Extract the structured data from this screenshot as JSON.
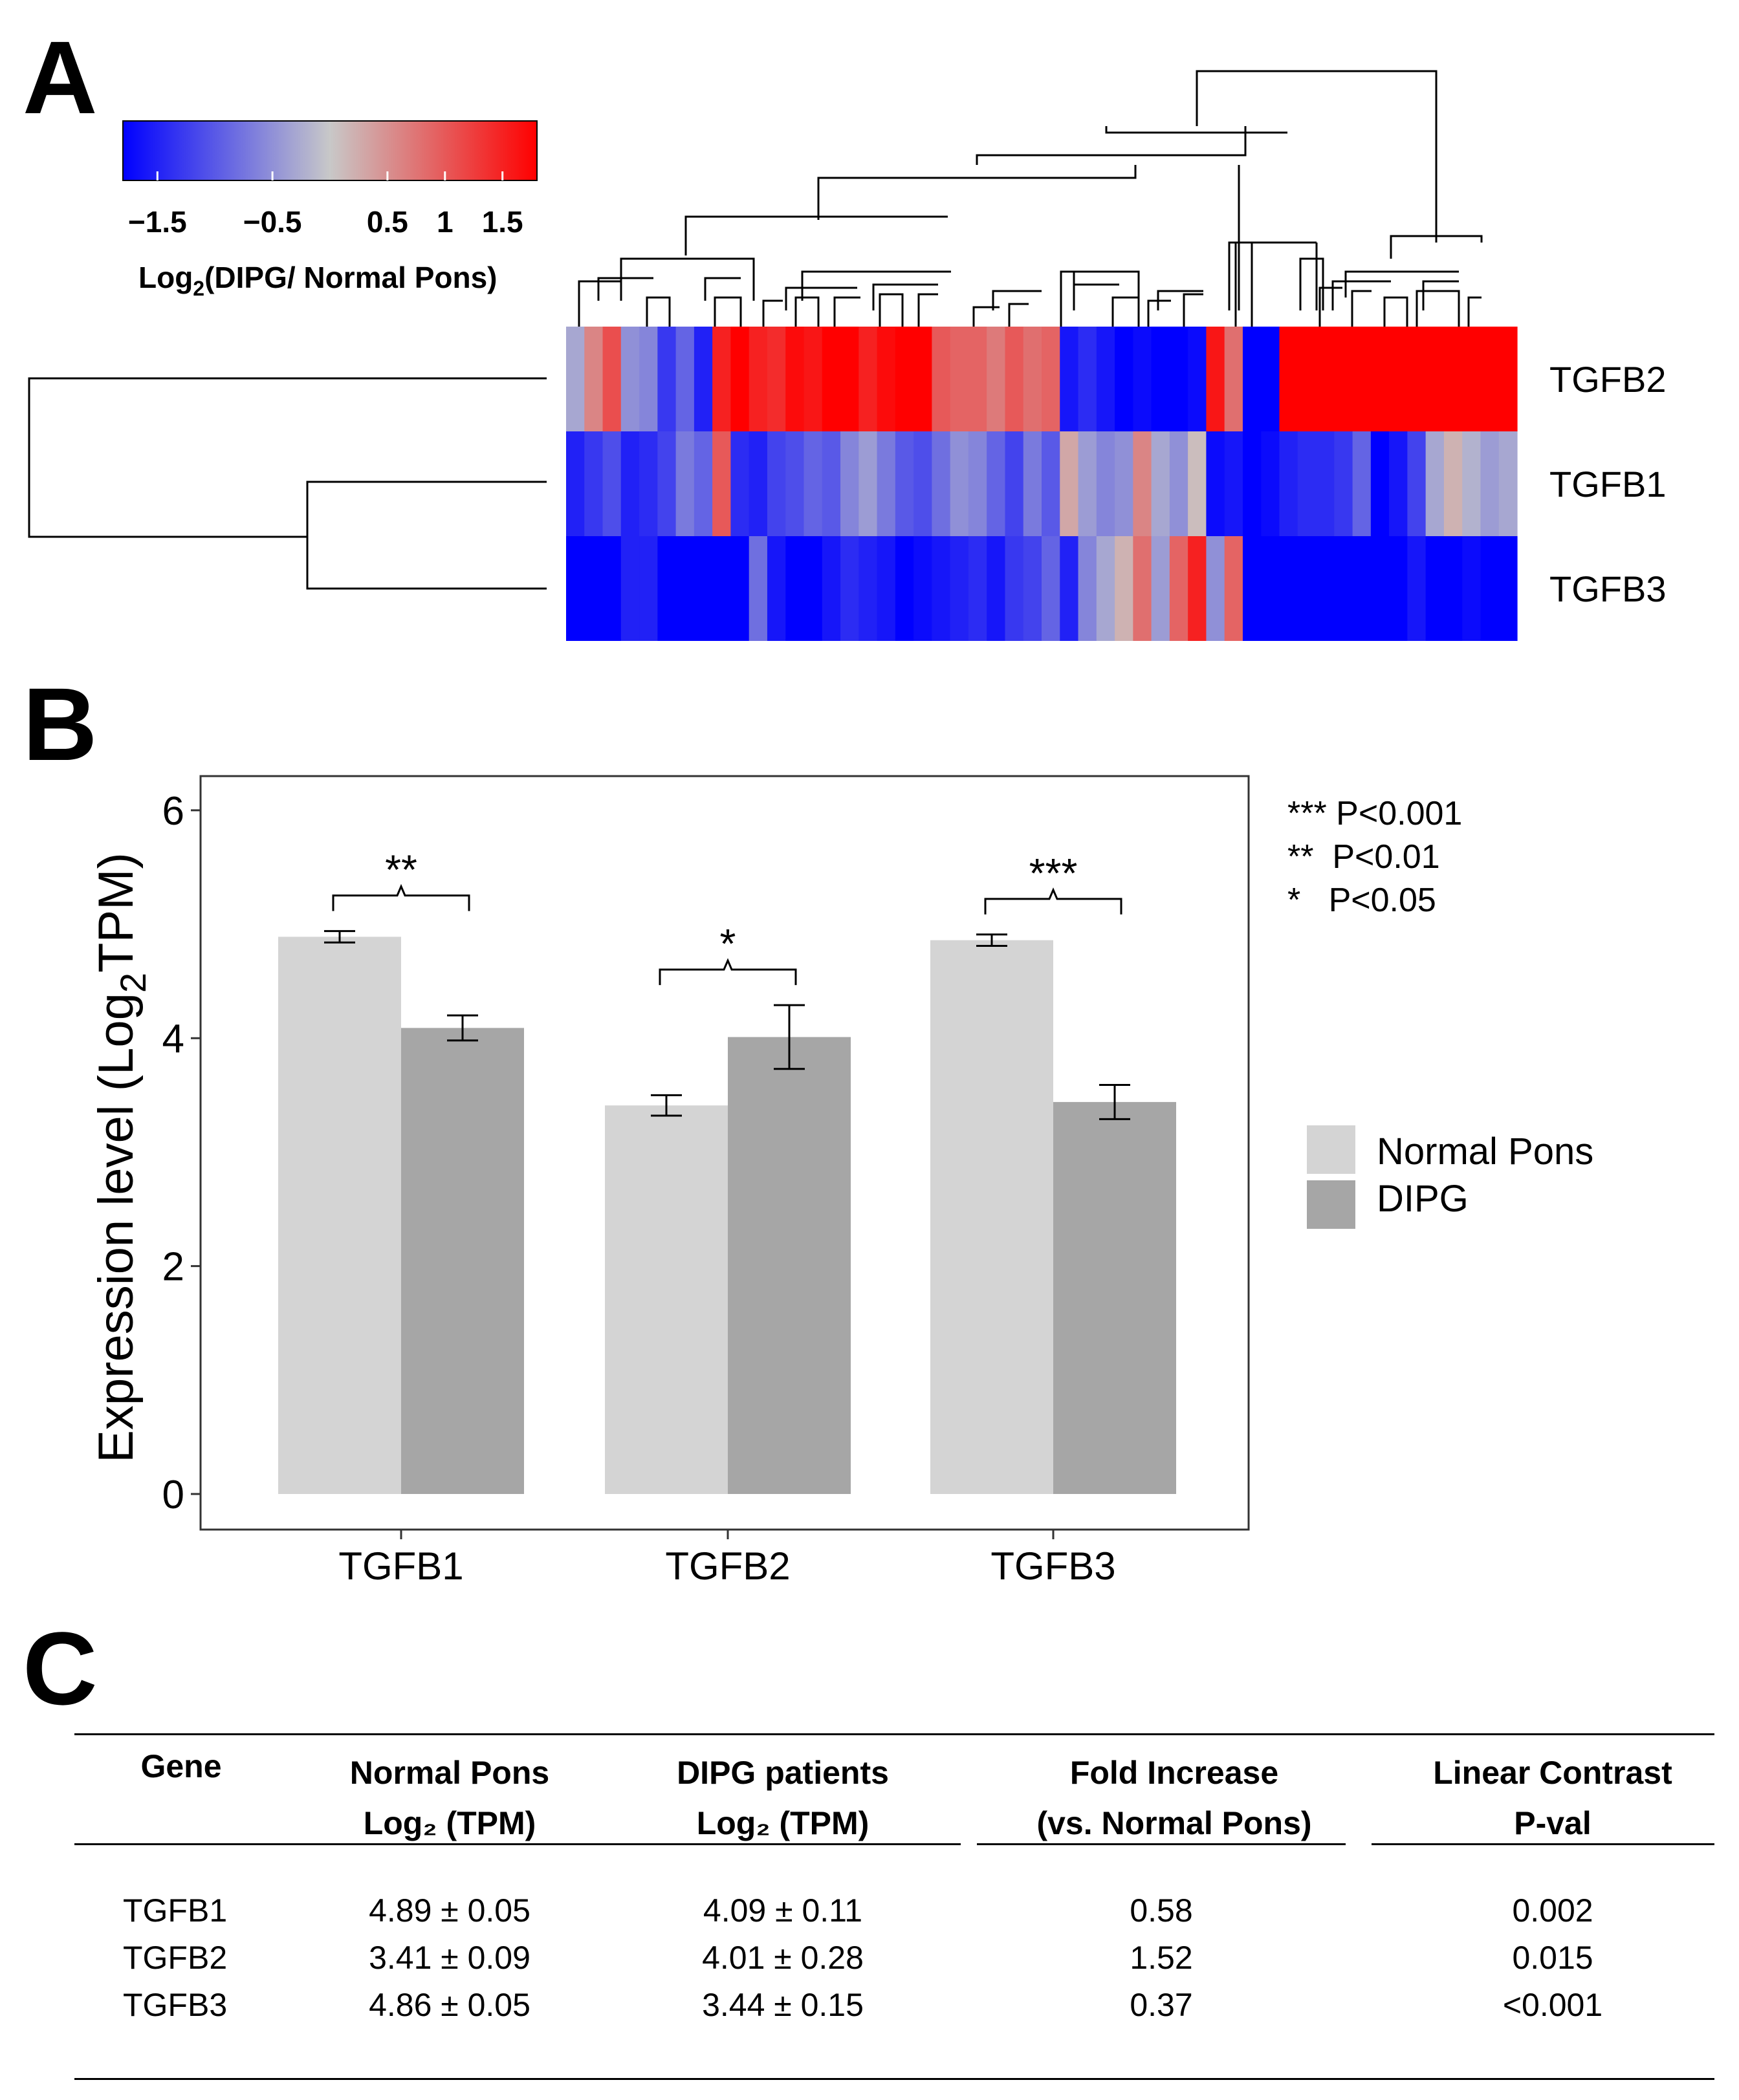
{
  "panels": {
    "a": "A",
    "b": "B",
    "c": "C"
  },
  "heatmap": {
    "colorbar": {
      "ticks": [
        "−1.5",
        "−0.5",
        "0.5",
        "1",
        "1.5"
      ],
      "tick_values": [
        -1.5,
        -0.5,
        0.5,
        1,
        1.5
      ],
      "range": [
        -1.8,
        1.8
      ],
      "label_prefix": "Log",
      "label_sub": "2",
      "label_suffix": "(DIPG/ Normal Pons)",
      "low_color": "#0000ff",
      "mid_color": "#c8c8c8",
      "high_color": "#ff0000"
    },
    "rows": [
      "TGFB2",
      "TGFB1",
      "TGFB3"
    ],
    "values": [
      [
        -0.3,
        0.6,
        1.1,
        -0.5,
        -0.6,
        -1.3,
        -0.9,
        -1.5,
        1.5,
        1.8,
        1.5,
        1.4,
        1.7,
        1.6,
        1.8,
        1.8,
        1.5,
        1.7,
        1.8,
        1.8,
        1.0,
        0.9,
        0.9,
        0.7,
        1.0,
        0.8,
        0.9,
        -1.6,
        -1.4,
        -1.6,
        -1.8,
        -1.7,
        -1.8,
        -1.8,
        -1.7,
        1.6,
        0.8,
        -1.8,
        -1.8,
        1.8,
        1.8,
        1.8,
        1.8,
        1.8,
        1.8,
        1.8,
        1.8,
        1.8,
        1.8,
        1.8,
        1.8,
        1.8
      ],
      [
        -1.5,
        -1.3,
        -1.1,
        -1.5,
        -1.4,
        -1.2,
        -0.7,
        -0.9,
        1.0,
        -1.4,
        -1.5,
        -1.2,
        -1.1,
        -0.9,
        -1.0,
        -0.6,
        -0.4,
        -0.7,
        -1.0,
        -1.1,
        -0.8,
        -0.5,
        -0.6,
        -0.9,
        -1.2,
        -0.7,
        -1.0,
        0.3,
        -0.4,
        -0.6,
        -0.5,
        0.6,
        -0.3,
        -0.5,
        0.1,
        -1.7,
        -1.6,
        -1.8,
        -1.7,
        -1.5,
        -1.4,
        -1.4,
        -1.3,
        -0.9,
        -1.8,
        -1.6,
        -1.2,
        -0.3,
        0.2,
        -0.2,
        -0.4,
        -0.3
      ],
      [
        -1.8,
        -1.8,
        -1.8,
        -1.5,
        -1.5,
        -1.8,
        -1.8,
        -1.8,
        -1.8,
        -1.8,
        -0.8,
        -1.6,
        -1.8,
        -1.8,
        -1.6,
        -1.4,
        -1.5,
        -1.6,
        -1.8,
        -1.7,
        -1.6,
        -1.5,
        -1.4,
        -1.6,
        -1.3,
        -1.2,
        -0.9,
        -1.5,
        -0.6,
        -0.3,
        0.2,
        0.8,
        -0.4,
        0.9,
        1.5,
        -0.5,
        0.9,
        -1.8,
        -1.8,
        -1.8,
        -1.8,
        -1.8,
        -1.8,
        -1.8,
        -1.8,
        -1.8,
        -1.6,
        -1.8,
        -1.8,
        -1.7,
        -1.8,
        -1.8
      ]
    ]
  },
  "chart_data": {
    "type": "bar",
    "categories": [
      "TGFB1",
      "TGFB2",
      "TGFB3"
    ],
    "series": [
      {
        "name": "Normal Pons",
        "values": [
          4.89,
          3.41,
          4.86
        ],
        "errors": [
          0.05,
          0.09,
          0.05
        ],
        "color": "#d4d4d4"
      },
      {
        "name": "DIPG",
        "values": [
          4.09,
          4.01,
          3.44
        ],
        "errors": [
          0.11,
          0.28,
          0.15
        ],
        "color": "#a6a6a6"
      }
    ],
    "ylabel_prefix": "Expression level (Log",
    "ylabel_sub": "2",
    "ylabel_suffix": "TPM)",
    "ylim": [
      0,
      6.3
    ],
    "yticks": [
      0,
      2,
      4,
      6
    ],
    "significance": [
      "**",
      "*",
      "***"
    ],
    "sig_legend": [
      "*** P<0.001",
      "**  P<0.01",
      "*   P<0.05"
    ],
    "legend_position": "right"
  },
  "table": {
    "headers": [
      [
        "Gene",
        ""
      ],
      [
        "Normal Pons",
        "Log₂ (TPM)"
      ],
      [
        "DIPG patients",
        "Log₂ (TPM)"
      ],
      [
        "Fold Increase",
        "(vs. Normal Pons)"
      ],
      [
        "Linear Contrast",
        "P-val"
      ]
    ],
    "rows": [
      [
        "TGFB1",
        "4.89 ± 0.05",
        "4.09 ± 0.11",
        "0.58",
        "0.002"
      ],
      [
        "TGFB2",
        "3.41 ± 0.09",
        "4.01 ± 0.28",
        "1.52",
        "0.015"
      ],
      [
        "TGFB3",
        "4.86 ± 0.05",
        "3.44 ± 0.15",
        "0.37",
        "<0.001"
      ]
    ]
  }
}
